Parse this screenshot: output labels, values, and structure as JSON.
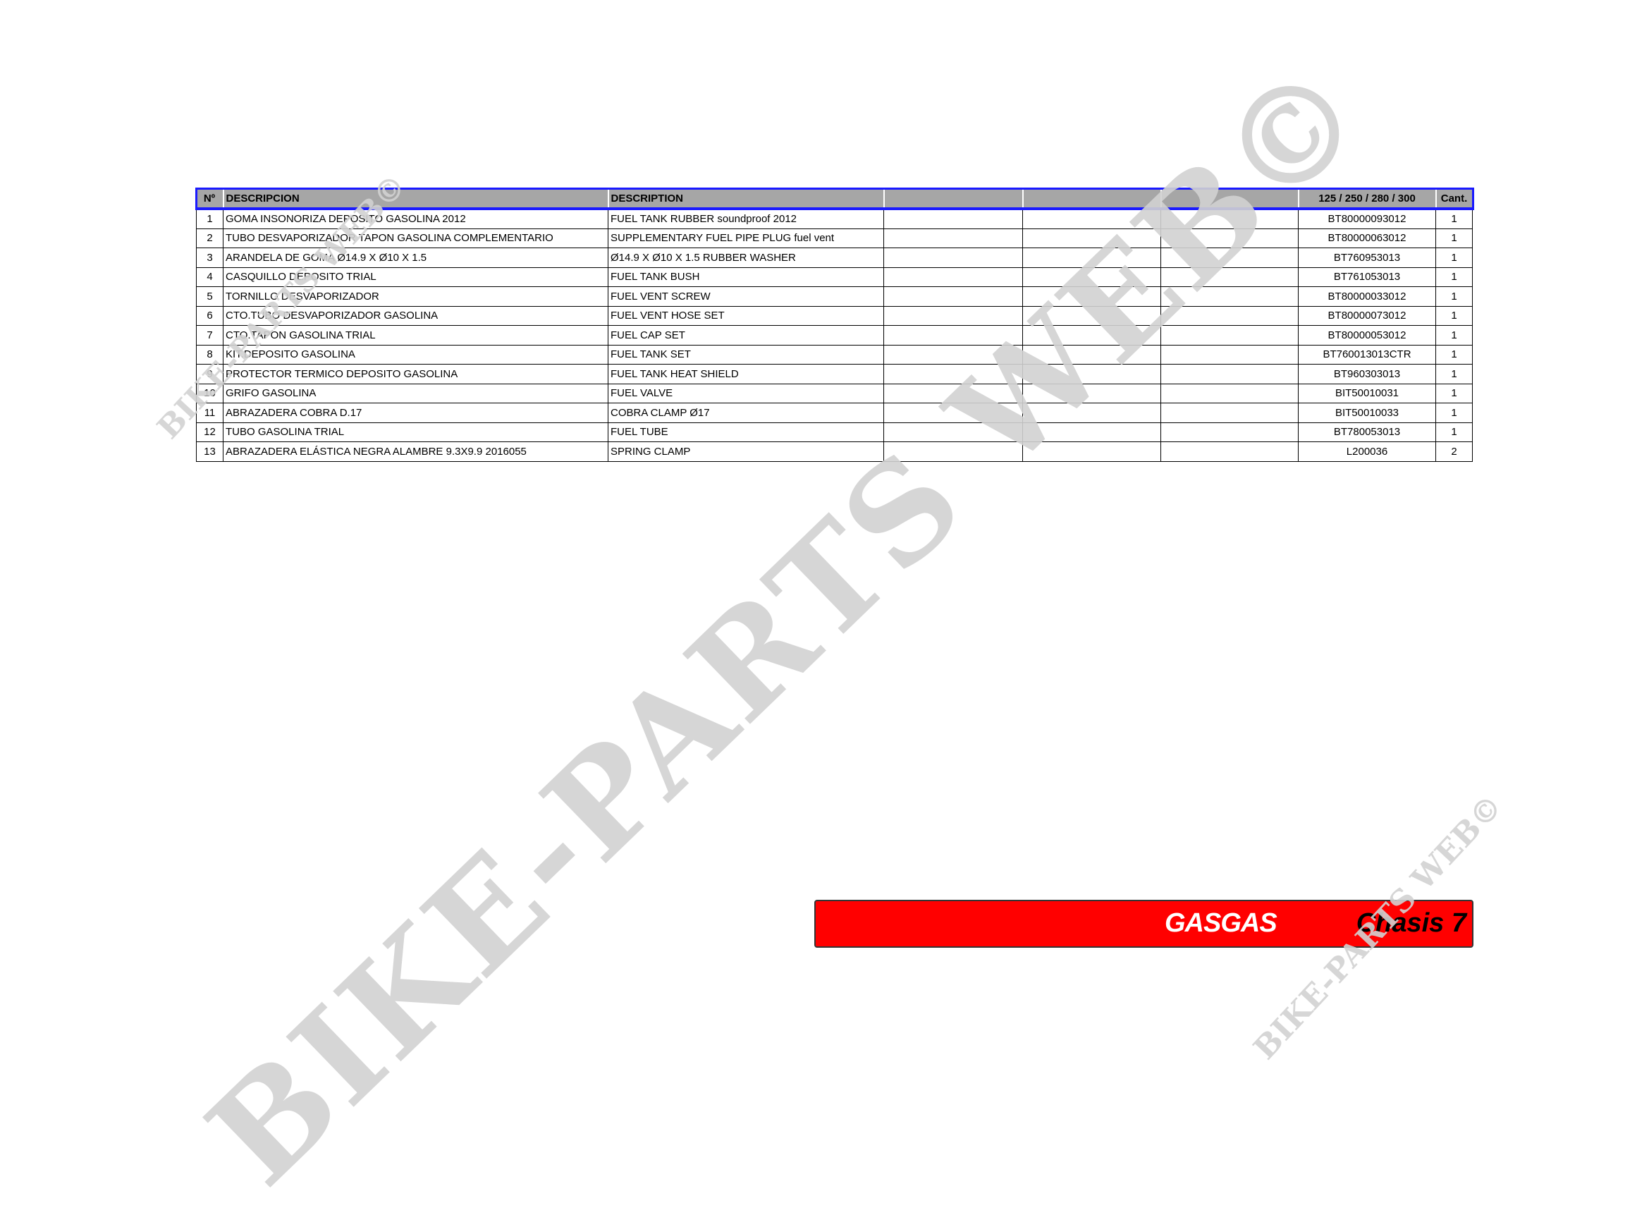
{
  "table": {
    "headers": [
      "Nº",
      "DESCRIPCION",
      "DESCRIPTION",
      "",
      "",
      "",
      "125 / 250 / 280 / 300",
      "Cant."
    ],
    "rows": [
      {
        "n": "1",
        "es": "GOMA INSONORIZA DEPOSITO GASOLINA 2012",
        "en": "FUEL TANK RUBBER soundproof 2012",
        "ref": "BT80000093012",
        "qty": "1"
      },
      {
        "n": "2",
        "es": "TUBO DESVAPORIZADOR TAPON GASOLINA COMPLEMENTARIO",
        "en": "SUPPLEMENTARY FUEL PIPE PLUG fuel vent",
        "ref": "BT80000063012",
        "qty": "1"
      },
      {
        "n": "3",
        "es": "ARANDELA DE GOMA Ø14.9 X Ø10 X 1.5",
        "en": "Ø14.9 X Ø10 X 1.5 RUBBER WASHER",
        "ref": "BT760953013",
        "qty": "1"
      },
      {
        "n": "4",
        "es": "CASQUILLO DEPOSITO TRIAL",
        "en": "FUEL TANK BUSH",
        "ref": "BT761053013",
        "qty": "1"
      },
      {
        "n": "5",
        "es": "TORNILLO DESVAPORIZADOR",
        "en": "FUEL VENT SCREW",
        "ref": "BT80000033012",
        "qty": "1"
      },
      {
        "n": "6",
        "es": "CTO.TUBO DESVAPORIZADOR GASOLINA",
        "en": "FUEL VENT HOSE SET",
        "ref": "BT80000073012",
        "qty": "1"
      },
      {
        "n": "7",
        "es": "CTO.TAPON GASOLINA TRIAL",
        "en": "FUEL CAP SET",
        "ref": "BT80000053012",
        "qty": "1"
      },
      {
        "n": "8",
        "es": "KIT.DEPOSITO GASOLINA",
        "en": "FUEL TANK SET",
        "ref": "BT760013013CTR",
        "qty": "1"
      },
      {
        "n": "9",
        "es": "PROTECTOR TERMICO DEPOSITO GASOLINA",
        "en": "FUEL TANK HEAT SHIELD",
        "ref": "BT960303013",
        "qty": "1"
      },
      {
        "n": "10",
        "es": "GRIFO GASOLINA",
        "en": "FUEL VALVE",
        "ref": "BIT50010031",
        "qty": "1"
      },
      {
        "n": "11",
        "es": "ABRAZADERA COBRA D.17",
        "en": "COBRA CLAMP  Ø17",
        "ref": "BIT50010033",
        "qty": "1"
      },
      {
        "n": "12",
        "es": "TUBO GASOLINA TRIAL",
        "en": "FUEL TUBE",
        "ref": "BT780053013",
        "qty": "1"
      },
      {
        "n": "13",
        "es": "ABRAZADERA ELÁSTICA NEGRA ALAMBRE 9.3X9.9 2016055",
        "en": "SPRING CLAMP",
        "ref": "L200036",
        "qty": "2"
      }
    ]
  },
  "banner": {
    "brand": "GASGAS",
    "section": "Chasis 7",
    "color": "#ff0000"
  },
  "watermark": "BIKE-PARTS WEB©"
}
